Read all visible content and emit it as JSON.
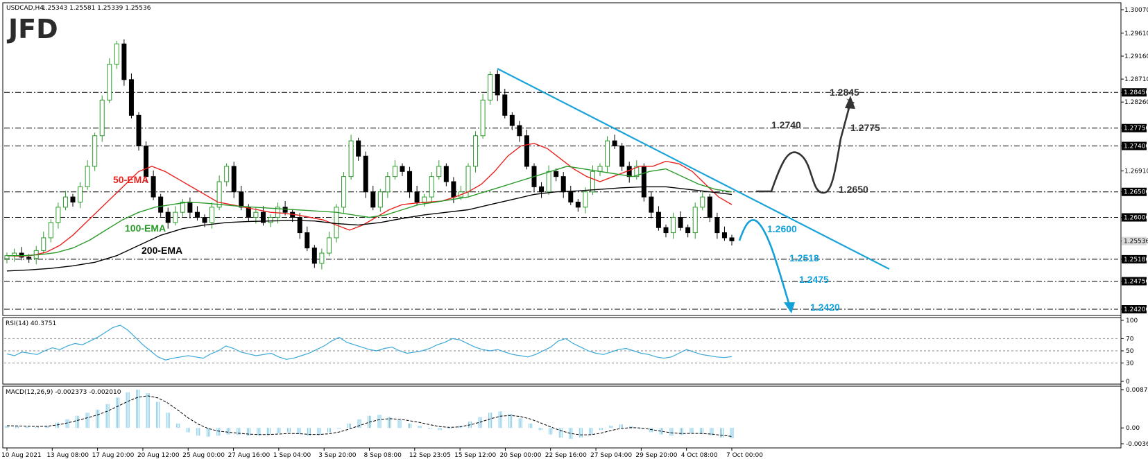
{
  "header": {
    "symbol": "USDCAD,H4",
    "ohlc": "1.25343 1.25581 1.25339 1.25536"
  },
  "brand": {
    "logo_text": "JFD"
  },
  "colors": {
    "ema50": "#e8221e",
    "ema100": "#2a9a2a",
    "ema200": "#000000",
    "trendline": "#1aa3d9",
    "up_scenario": "#333333",
    "down_scenario": "#14a0d8",
    "rsi_line": "#3aa8d8",
    "macd_hist": "#7cc8e8",
    "bull_candle": "#2a9a2a",
    "bear_candle": "#000000"
  },
  "chart_data": [
    {
      "type": "candlestick",
      "panel": "price",
      "title": "USDCAD,H4",
      "ylim": [
        1.242,
        1.3007
      ],
      "y_ticks": [
        "1.30070",
        "1.29610",
        "1.29160",
        "1.28710",
        "1.28450",
        "1.28260",
        "1.27750",
        "1.27400",
        "1.26910",
        "1.26500",
        "1.26000",
        "1.25536",
        "1.25180",
        "1.24750",
        "1.24200"
      ],
      "x_ticks": [
        "10 Aug 2021",
        "13 Aug 08:00",
        "17 Aug 20:00",
        "20 Aug 12:00",
        "25 Aug 00:00",
        "27 Aug 16:00",
        "1 Sep 04:00",
        "3 Sep 20:00",
        "8 Sep 08:00",
        "12 Sep 23:05",
        "15 Sep 12:00",
        "20 Sep 00:00",
        "22 Sep 16:00",
        "27 Sep 04:00",
        "29 Sep 20:00",
        "4 Oct 08:00",
        "7 Oct 00:00"
      ],
      "close_approx": [
        1.2525,
        1.253,
        1.2522,
        1.252,
        1.2535,
        1.256,
        1.259,
        1.262,
        1.264,
        1.263,
        1.266,
        1.27,
        1.276,
        1.283,
        1.29,
        1.294,
        1.287,
        1.28,
        1.274,
        1.268,
        1.264,
        1.261,
        1.259,
        1.261,
        1.263,
        1.261,
        1.26,
        1.259,
        1.262,
        1.267,
        1.27,
        1.265,
        1.262,
        1.26,
        1.261,
        1.259,
        1.26,
        1.262,
        1.261,
        1.26,
        1.257,
        1.254,
        1.251,
        1.253,
        1.256,
        1.262,
        1.268,
        1.275,
        1.272,
        1.265,
        1.262,
        1.265,
        1.268,
        1.27,
        1.269,
        1.265,
        1.263,
        1.264,
        1.268,
        1.27,
        1.267,
        1.264,
        1.265,
        1.27,
        1.276,
        1.283,
        1.288,
        1.284,
        1.28,
        1.278,
        1.276,
        1.27,
        1.266,
        1.265,
        1.269,
        1.268,
        1.265,
        1.263,
        1.262,
        1.265,
        1.269,
        1.27,
        1.275,
        1.274,
        1.27,
        1.268,
        1.27,
        1.264,
        1.261,
        1.258,
        1.257,
        1.26,
        1.258,
        1.257,
        1.262,
        1.264,
        1.26,
        1.257,
        1.256,
        1.2554
      ],
      "series": [
        {
          "name": "50-EMA",
          "values": [
            1.2525,
            1.2524,
            1.2526,
            1.2532,
            1.2545,
            1.2565,
            1.259,
            1.2615,
            1.264,
            1.2665,
            1.269,
            1.27,
            1.269,
            1.2675,
            1.266,
            1.2645,
            1.263,
            1.2625,
            1.262,
            1.2615,
            1.261,
            1.2608,
            1.2605,
            1.26,
            1.2595,
            1.2585,
            1.2575,
            1.2585,
            1.26,
            1.2615,
            1.2625,
            1.2628,
            1.263,
            1.2632,
            1.264,
            1.265,
            1.2665,
            1.269,
            1.272,
            1.274,
            1.2745,
            1.2735,
            1.2715,
            1.2695,
            1.268,
            1.267,
            1.268,
            1.269,
            1.27,
            1.27,
            1.271,
            1.2705,
            1.269,
            1.2665,
            1.264,
            1.2625
          ]
        },
        {
          "name": "100-EMA",
          "values": [
            1.2525,
            1.2525,
            1.2527,
            1.2531,
            1.254,
            1.2555,
            1.2575,
            1.2595,
            1.261,
            1.262,
            1.2625,
            1.263,
            1.2628,
            1.2625,
            1.2622,
            1.262,
            1.2618,
            1.2616,
            1.2614,
            1.2612,
            1.261,
            1.2605,
            1.26,
            1.2605,
            1.2615,
            1.2625,
            1.263,
            1.2635,
            1.264,
            1.265,
            1.266,
            1.267,
            1.268,
            1.269,
            1.27,
            1.2695,
            1.269,
            1.2685,
            1.268,
            1.269,
            1.2695,
            1.268,
            1.2665,
            1.2655,
            1.265
          ]
        },
        {
          "name": "200-EMA",
          "values": [
            1.2495,
            1.2497,
            1.25,
            1.2505,
            1.2512,
            1.2525,
            1.2545,
            1.2565,
            1.2578,
            1.2585,
            1.259,
            1.2592,
            1.2593,
            1.2594,
            1.2593,
            1.2588,
            1.2585,
            1.259,
            1.2598,
            1.2605,
            1.261,
            1.2615,
            1.2625,
            1.2635,
            1.2645,
            1.265,
            1.2652,
            1.2655,
            1.2658,
            1.266,
            1.266,
            1.2655,
            1.265,
            1.2645
          ]
        }
      ],
      "levels": [
        1.2845,
        1.2775,
        1.274,
        1.265,
        1.26,
        1.2518,
        1.2475,
        1.242
      ],
      "annotations": {
        "ema50": "50-EMA",
        "ema100": "100-EMA",
        "ema200": "200-EMA",
        "up_path": [
          "1.2740",
          "1.2650",
          "1.2775",
          "1.2845"
        ],
        "down_path": [
          "1.2600",
          "1.2518",
          "1.2475",
          "1.2420"
        ]
      }
    },
    {
      "type": "line",
      "panel": "rsi",
      "title": "RSI(14) 40.3751",
      "ylim": [
        0,
        100
      ],
      "y_ticks": [
        "100",
        "70",
        "50",
        "30",
        "0"
      ],
      "values": [
        45,
        42,
        48,
        46,
        44,
        50,
        55,
        52,
        58,
        62,
        60,
        66,
        72,
        80,
        88,
        92,
        84,
        72,
        60,
        50,
        40,
        35,
        38,
        40,
        42,
        40,
        38,
        45,
        50,
        58,
        54,
        48,
        45,
        42,
        44,
        46,
        40,
        36,
        38,
        42,
        46,
        52,
        58,
        66,
        72,
        64,
        60,
        56,
        52,
        50,
        54,
        56,
        50,
        46,
        48,
        50,
        54,
        60,
        64,
        70,
        68,
        62,
        56,
        52,
        50,
        52,
        48,
        44,
        42,
        40,
        44,
        50,
        56,
        66,
        70,
        62,
        56,
        50,
        46,
        44,
        48,
        52,
        54,
        50,
        46,
        44,
        40,
        38,
        40,
        46,
        52,
        48,
        44,
        42,
        40,
        39,
        40.4
      ]
    },
    {
      "type": "bar",
      "panel": "macd",
      "title": "MACD(12,26,9) -0.002373 -0.002010",
      "ylim": [
        -0.003637,
        0.008797
      ],
      "y_ticks": [
        "0.008797",
        "0.00",
        "-0.003637"
      ],
      "values": [
        0.0005,
        0.0004,
        0.0003,
        0.0002,
        0.0005,
        0.0012,
        0.002,
        0.0028,
        0.0035,
        0.0042,
        0.0055,
        0.007,
        0.0082,
        0.0088,
        0.008,
        0.006,
        0.0035,
        0.001,
        -0.001,
        -0.0018,
        -0.002,
        -0.0018,
        -0.0015,
        -0.0016,
        -0.0018,
        -0.0017,
        -0.0015,
        -0.0012,
        -0.001,
        -0.0014,
        -0.0018,
        -0.0016,
        -0.001,
        -0.0002,
        0.001,
        0.002,
        0.0028,
        0.003,
        0.0025,
        0.0018,
        0.001,
        0.0005,
        -0.0002,
        -0.0005,
        -0.0002,
        0.0005,
        0.0015,
        0.0025,
        0.0035,
        0.0038,
        0.0032,
        0.0022,
        0.001,
        -0.0005,
        -0.0015,
        -0.0022,
        -0.0025,
        -0.0022,
        -0.0015,
        -0.0005,
        0.0005,
        0.0008,
        0.0004,
        -0.0002,
        -0.001,
        -0.0015,
        -0.0018,
        -0.0016,
        -0.0012,
        -0.0013,
        -0.0017,
        -0.0022,
        -0.0024
      ]
    }
  ]
}
